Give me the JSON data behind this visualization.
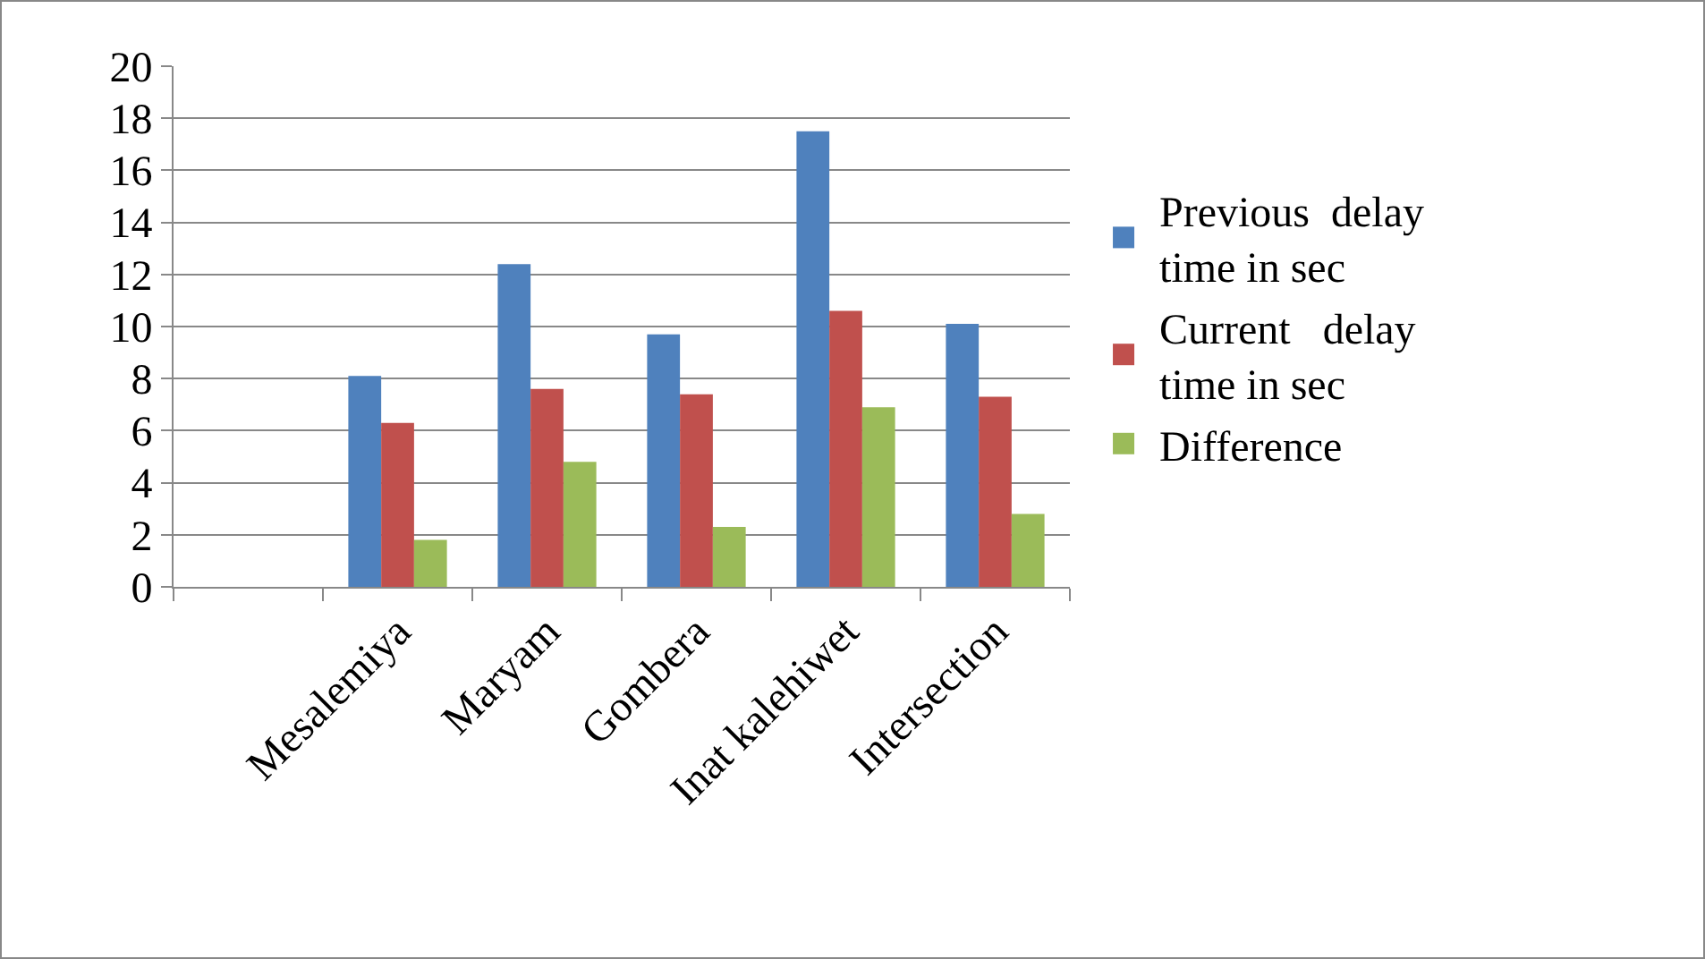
{
  "chart_data": {
    "type": "bar",
    "categories": [
      null,
      "Mesalemiya",
      "Maryam",
      "Gombera",
      "Inat kalehiwet",
      "Intersection"
    ],
    "series": [
      {
        "name": "Previous  delay time in sec",
        "color": "#4f81bd",
        "values": [
          null,
          8.1,
          12.4,
          9.7,
          17.5,
          10.1
        ]
      },
      {
        "name": "Current   delay time in sec",
        "color": "#c0504d",
        "values": [
          null,
          6.3,
          7.6,
          7.4,
          10.6,
          7.3
        ]
      },
      {
        "name": "Difference",
        "color": "#9bbb59",
        "values": [
          null,
          1.8,
          4.8,
          2.3,
          6.9,
          2.8
        ]
      }
    ],
    "ylim": [
      0,
      20
    ],
    "yticks": [
      0,
      2,
      4,
      6,
      8,
      10,
      12,
      14,
      16,
      18,
      20
    ],
    "grid": "y",
    "legend": "right"
  }
}
